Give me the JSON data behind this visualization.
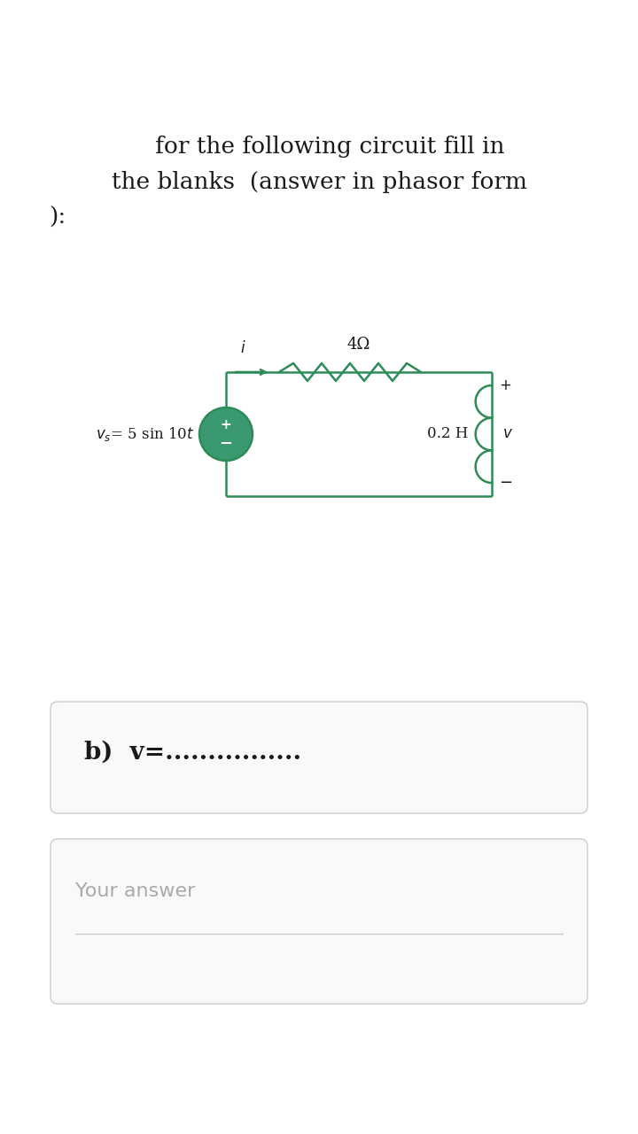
{
  "bg_color": "#ffffff",
  "title_line1": "   for the following circuit fill in",
  "title_line2": "the blanks  (answer in phasor form",
  "title_line3": "):",
  "title_fontsize": 19,
  "circuit_color": "#2e8b57",
  "resistor_label": "4Ω",
  "inductor_label": "0.2 H",
  "current_label": "i",
  "voltage_label": "v",
  "answer_text": "b)  v=................",
  "answer_fontsize": 20,
  "your_answer_text": "Your answer",
  "your_answer_fontsize": 16,
  "your_answer_color": "#aaaaaa"
}
